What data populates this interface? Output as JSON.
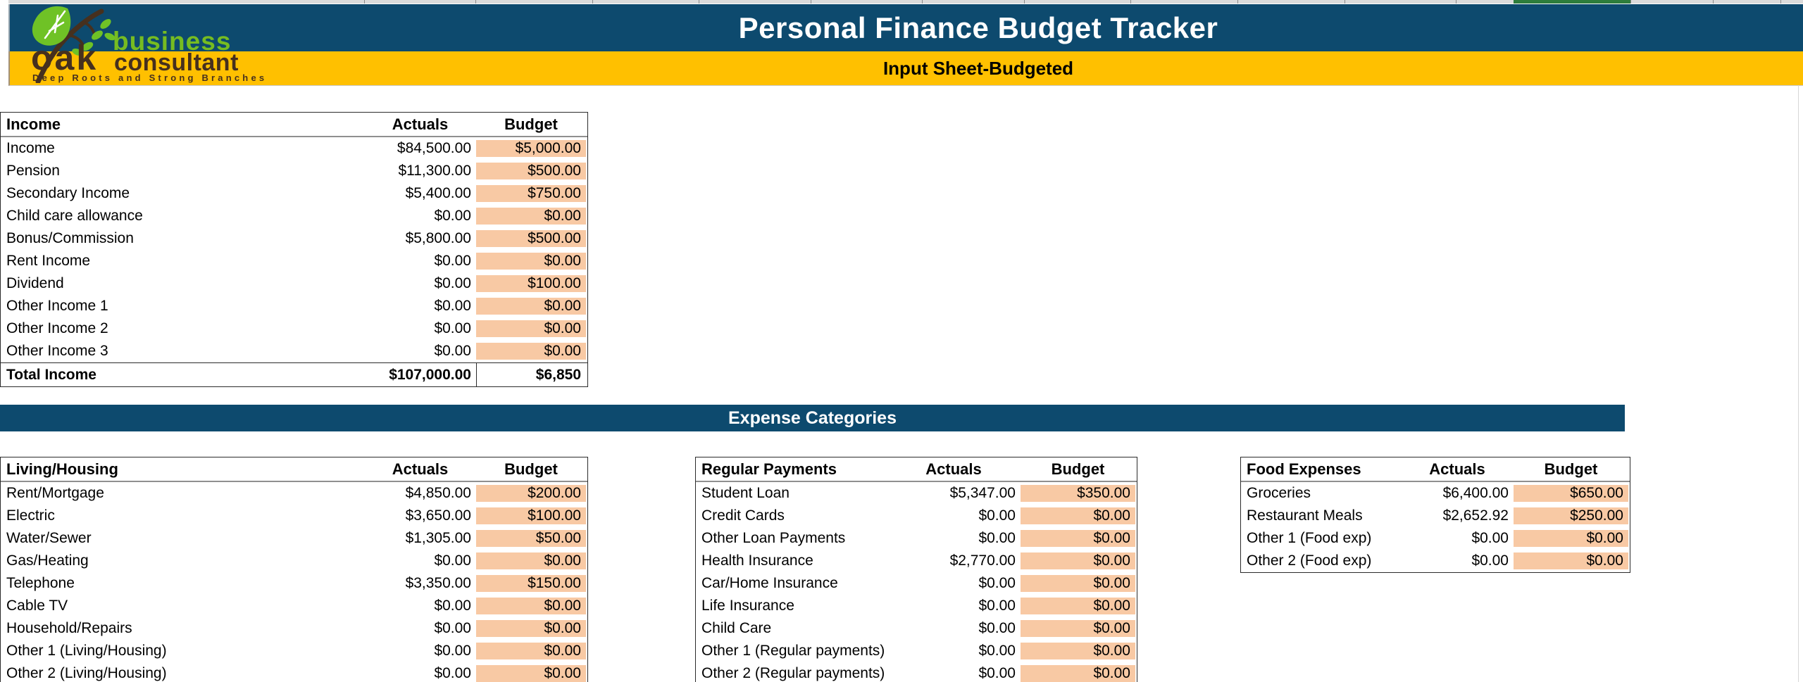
{
  "header": {
    "title": "Personal Finance Budget Tracker",
    "subtitle": "Input Sheet-Budgeted"
  },
  "logo": {
    "word_business": "business",
    "word_oak": "oak",
    "word_consultant": "consultant",
    "tagline": "Deep Roots and Strong Branches"
  },
  "section": {
    "expense_header": "Expense Categories"
  },
  "colors": {
    "banner_blue": "#0d4a6e",
    "banner_yellow": "#ffc000",
    "budget_column_fill": "#f8c9a4",
    "logo_green": "#76bc21",
    "logo_brown": "#46301e",
    "selected_column_green": "#2e7d3c"
  },
  "tables": {
    "income": {
      "title": "Income",
      "columns": [
        "Actuals",
        "Budget"
      ],
      "rows": [
        {
          "label": "Income",
          "actuals": "$84,500.00",
          "budget": "$5,000.00"
        },
        {
          "label": "Pension",
          "actuals": "$11,300.00",
          "budget": "$500.00"
        },
        {
          "label": "Secondary Income",
          "actuals": "$5,400.00",
          "budget": "$750.00"
        },
        {
          "label": "Child care allowance",
          "actuals": "$0.00",
          "budget": "$0.00"
        },
        {
          "label": "Bonus/Commission",
          "actuals": "$5,800.00",
          "budget": "$500.00"
        },
        {
          "label": "Rent Income",
          "actuals": "$0.00",
          "budget": "$0.00"
        },
        {
          "label": "Dividend",
          "actuals": "$0.00",
          "budget": "$100.00"
        },
        {
          "label": "Other Income 1",
          "actuals": "$0.00",
          "budget": "$0.00"
        },
        {
          "label": "Other Income 2",
          "actuals": "$0.00",
          "budget": "$0.00"
        },
        {
          "label": "Other Income 3",
          "actuals": "$0.00",
          "budget": "$0.00"
        }
      ],
      "total": {
        "label": "Total Income",
        "actuals": "$107,000.00",
        "budget": "$6,850"
      }
    },
    "living_housing": {
      "title": "Living/Housing",
      "columns": [
        "Actuals",
        "Budget"
      ],
      "rows": [
        {
          "label": "Rent/Mortgage",
          "actuals": "$4,850.00",
          "budget": "$200.00"
        },
        {
          "label": "Electric",
          "actuals": "$3,650.00",
          "budget": "$100.00"
        },
        {
          "label": "Water/Sewer",
          "actuals": "$1,305.00",
          "budget": "$50.00"
        },
        {
          "label": "Gas/Heating",
          "actuals": "$0.00",
          "budget": "$0.00"
        },
        {
          "label": "Telephone",
          "actuals": "$3,350.00",
          "budget": "$150.00"
        },
        {
          "label": "Cable TV",
          "actuals": "$0.00",
          "budget": "$0.00"
        },
        {
          "label": "Household/Repairs",
          "actuals": "$0.00",
          "budget": "$0.00"
        },
        {
          "label": "Other 1 (Living/Housing)",
          "actuals": "$0.00",
          "budget": "$0.00"
        },
        {
          "label": "Other 2 (Living/Housing)",
          "actuals": "$0.00",
          "budget": "$0.00"
        }
      ]
    },
    "regular_payments": {
      "title": "Regular Payments",
      "columns": [
        "Actuals",
        "Budget"
      ],
      "rows": [
        {
          "label": "Student Loan",
          "actuals": "$5,347.00",
          "budget": "$350.00"
        },
        {
          "label": "Credit Cards",
          "actuals": "$0.00",
          "budget": "$0.00"
        },
        {
          "label": "Other Loan Payments",
          "actuals": "$0.00",
          "budget": "$0.00"
        },
        {
          "label": "Health Insurance",
          "actuals": "$2,770.00",
          "budget": "$0.00"
        },
        {
          "label": "Car/Home Insurance",
          "actuals": "$0.00",
          "budget": "$0.00"
        },
        {
          "label": "Life Insurance",
          "actuals": "$0.00",
          "budget": "$0.00"
        },
        {
          "label": "Child Care",
          "actuals": "$0.00",
          "budget": "$0.00"
        },
        {
          "label": "Other 1 (Regular payments)",
          "actuals": "$0.00",
          "budget": "$0.00"
        },
        {
          "label": "Other 2 (Regular payments)",
          "actuals": "$0.00",
          "budget": "$0.00"
        }
      ]
    },
    "food_expenses": {
      "title": "Food Expenses",
      "columns": [
        "Actuals",
        "Budget"
      ],
      "rows": [
        {
          "label": "Groceries",
          "actuals": "$6,400.00",
          "budget": "$650.00"
        },
        {
          "label": "Restaurant Meals",
          "actuals": "$2,652.92",
          "budget": "$250.00"
        },
        {
          "label": "Other 1 (Food exp)",
          "actuals": "$0.00",
          "budget": "$0.00"
        },
        {
          "label": "Other 2 (Food exp)",
          "actuals": "$0.00",
          "budget": "$0.00"
        }
      ]
    }
  }
}
